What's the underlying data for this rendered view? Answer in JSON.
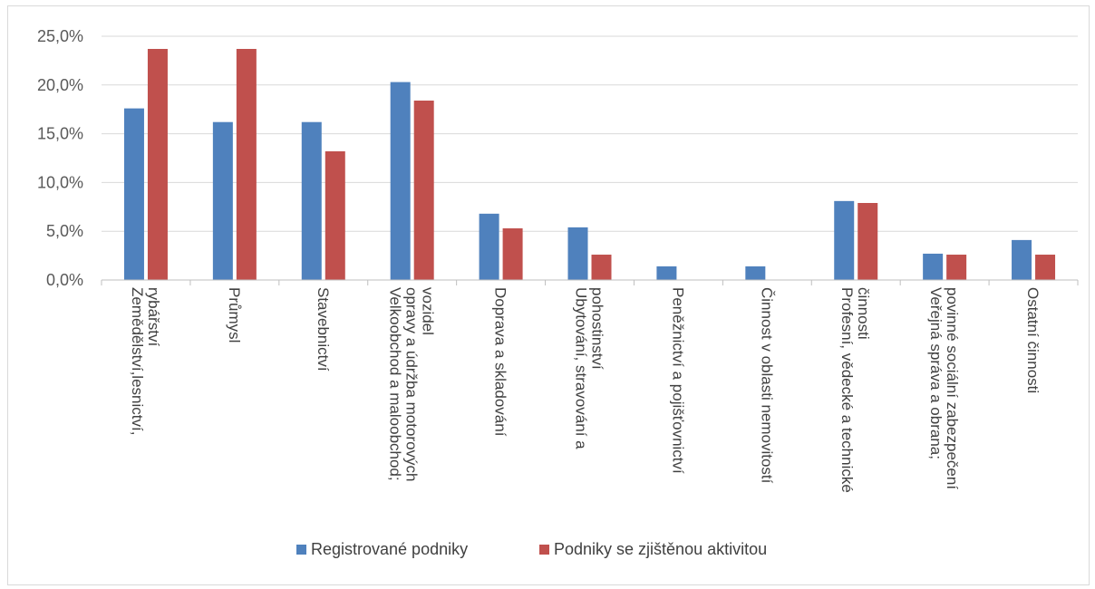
{
  "chart_data": {
    "type": "bar",
    "title": "",
    "xlabel": "",
    "ylabel": "",
    "ylim": [
      0,
      0.25
    ],
    "yticks": [
      "0,0%",
      "5,0%",
      "10,0%",
      "15,0%",
      "20,0%",
      "25,0%"
    ],
    "grid": true,
    "legend_position": "bottom",
    "categories": [
      [
        "Zemědělství,lesnictví,",
        "rybářství"
      ],
      [
        "Průmysl"
      ],
      [
        "Stavebnictví"
      ],
      [
        "Velkoobchod a maloobchod;",
        "opravy a údržba motorových",
        "vozidel"
      ],
      [
        "Doprava a skladování"
      ],
      [
        "Ubytování, stravování a",
        "pohostinství"
      ],
      [
        "Peněžnictví a pojišťovnictví"
      ],
      [
        "Činnost v oblasti nemovitostí"
      ],
      [
        "Profesní, vědecké a technické",
        "činnosti"
      ],
      [
        "Veřejná správa a obrana;",
        "povinné sociální zabezpečení"
      ],
      [
        "Ostatní činnosti"
      ]
    ],
    "series": [
      {
        "name": "Registrované podniky",
        "color": "#4f81bd",
        "values": [
          0.176,
          0.162,
          0.162,
          0.203,
          0.068,
          0.054,
          0.014,
          0.014,
          0.081,
          0.027,
          0.041
        ]
      },
      {
        "name": "Podniky se zjištěnou aktivitou",
        "color": "#c0504d",
        "values": [
          0.237,
          0.237,
          0.132,
          0.184,
          0.053,
          0.026,
          0.0,
          0.0,
          0.079,
          0.026,
          0.026
        ]
      }
    ]
  }
}
